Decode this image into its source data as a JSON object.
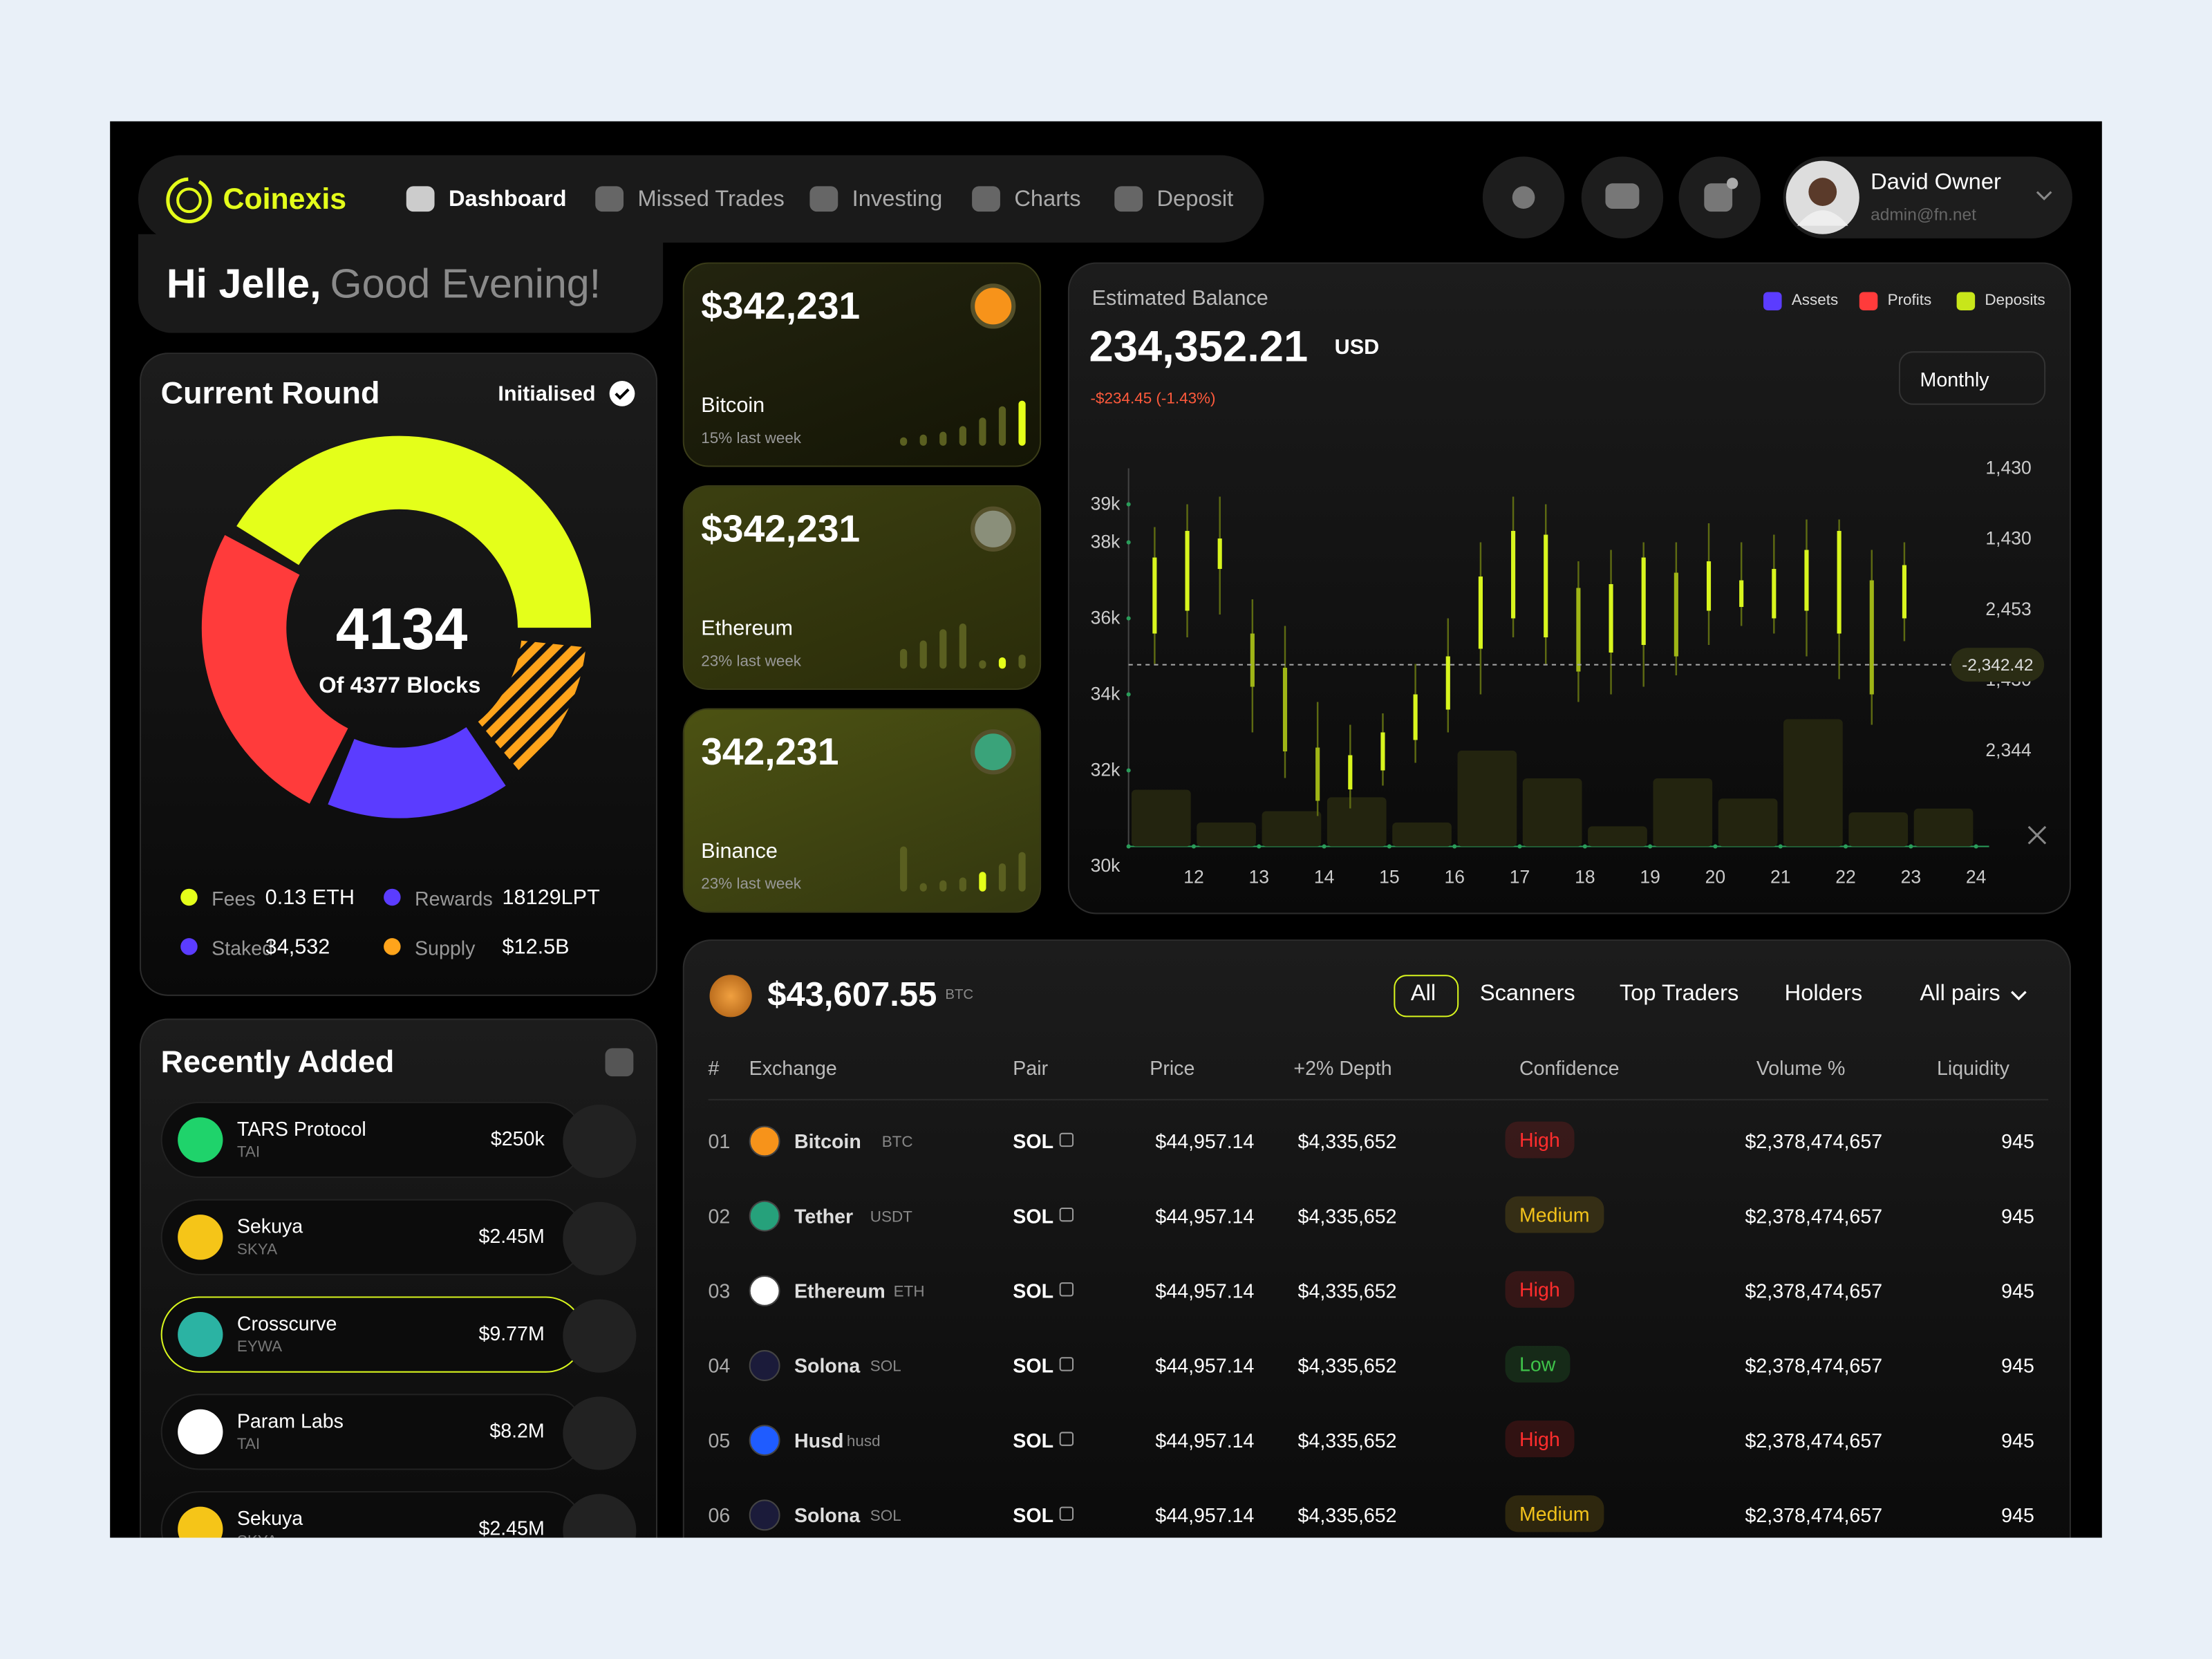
{
  "nav": {
    "brand": "Coinexis",
    "items": [
      "Dashboard",
      "Missed Trades",
      "Investing",
      "Charts",
      "Deposit"
    ]
  },
  "user": {
    "name": "David Owner",
    "email": "admin@fn.net"
  },
  "greeting": {
    "name": "Hi Jelle,",
    "message": "Good Evening!"
  },
  "current_round": {
    "title": "Current Round",
    "status": "Initialised",
    "value": "4134",
    "caption": "Of 4377 Blocks",
    "stats": [
      {
        "label": "Fees",
        "value": "0.13 ETH",
        "color": "#e4ff1a"
      },
      {
        "label": "Rewards",
        "value": "18129LPT",
        "color": "#5b3cff"
      },
      {
        "label": "Staked",
        "value": "34,532",
        "color": "#5b3cff"
      },
      {
        "label": "Supply",
        "value": "$12.5B",
        "color": "#ffa41b"
      }
    ]
  },
  "coins": [
    {
      "amount": "$342,231",
      "name": "Bitcoin",
      "change": "15% last week",
      "icon_color": "#f7931a"
    },
    {
      "amount": "$342,231",
      "name": "Ethereum",
      "change": "23% last week",
      "icon_color": "#8a8f7a"
    },
    {
      "amount": "342,231",
      "name": "Binance",
      "change": "23% last week",
      "icon_color": "#3aa37a"
    }
  ],
  "balance": {
    "title": "Estimated Balance",
    "amount": "234,352.21",
    "currency": "USD",
    "change": "-$234.45 (-1.43%)",
    "legend": [
      {
        "name": "Assets",
        "color": "#5b3cff"
      },
      {
        "name": "Profits",
        "color": "#ff3b3b"
      },
      {
        "name": "Deposits",
        "color": "#c8e61a"
      }
    ],
    "period": "Monthly"
  },
  "chart_data": {
    "type": "candlestick",
    "xlim": [
      11,
      24.2
    ],
    "xticks": [
      12,
      13,
      14,
      15,
      16,
      17,
      18,
      19,
      20,
      21,
      22,
      23,
      24
    ],
    "ylim": [
      30000,
      39500
    ],
    "yticks": [
      {
        "value": 39000,
        "label": "39k"
      },
      {
        "value": 38000,
        "label": "38k"
      },
      {
        "value": 36000,
        "label": "36k"
      },
      {
        "value": 34000,
        "label": "34k"
      },
      {
        "value": 32000,
        "label": "32k"
      },
      {
        "value": 30000,
        "label": "30k"
      }
    ],
    "candles": {
      "x": [
        11.4,
        11.9,
        12.4,
        12.9,
        13.4,
        13.9,
        14.4,
        14.9,
        15.4,
        15.9,
        16.4,
        16.9,
        17.4,
        17.9,
        18.4,
        18.9,
        19.4,
        19.9,
        20.4,
        20.9,
        21.4,
        21.9,
        22.4,
        22.9
      ],
      "low": [
        34800,
        35500,
        36100,
        33000,
        31800,
        30800,
        31000,
        31600,
        32200,
        33000,
        34000,
        35500,
        34800,
        33800,
        34000,
        34200,
        34500,
        35300,
        35800,
        35600,
        35000,
        34400,
        33200,
        35400
      ],
      "high": [
        38400,
        39000,
        39200,
        36500,
        35800,
        33800,
        33200,
        33500,
        34800,
        36000,
        38000,
        39200,
        39000,
        37500,
        37800,
        38000,
        38000,
        38500,
        38000,
        38200,
        38600,
        38600,
        37800,
        38000
      ],
      "open": [
        35600,
        36200,
        37300,
        35600,
        34700,
        32600,
        31500,
        32000,
        32800,
        33600,
        35200,
        36000,
        35500,
        36800,
        35100,
        35300,
        37200,
        36200,
        36300,
        36000,
        36200,
        35600,
        37000,
        36000
      ],
      "close": [
        37600,
        38300,
        38100,
        34200,
        32500,
        31200,
        32400,
        33000,
        34000,
        35000,
        37100,
        38300,
        38200,
        34600,
        36900,
        37600,
        35000,
        37500,
        37000,
        37300,
        37800,
        38300,
        34000,
        37400
      ],
      "color": "#d8f51e"
    },
    "volume": {
      "x": [
        11.5,
        12.5,
        13.5,
        14.5,
        15.5,
        16.5,
        17.5,
        18.5,
        19.5,
        20.5,
        21.5,
        22.5,
        23.5
      ],
      "values": [
        45,
        19,
        28,
        39,
        19,
        76,
        54,
        16,
        54,
        38,
        101,
        27,
        30
      ],
      "y2lim": [
        0,
        300
      ],
      "color": "#23240f"
    },
    "y2_labels": [
      "1,430",
      "1,430",
      "2,453",
      "1,430",
      "2,344"
    ],
    "marker": {
      "value": 34780,
      "label": "-2,342.42"
    }
  },
  "recent": {
    "title": "Recently Added",
    "items": [
      {
        "name": "TARS Protocol",
        "symbol": "TAI",
        "value": "$250k",
        "icon_color": "#1fd36b",
        "selected": false
      },
      {
        "name": "Sekuya",
        "symbol": "SKYA",
        "value": "$2.45M",
        "icon_color": "#f5c518",
        "selected": false
      },
      {
        "name": "Crosscurve",
        "symbol": "EYWA",
        "value": "$9.77M",
        "icon_color": "#2bb3a3",
        "selected": true
      },
      {
        "name": "Param Labs",
        "symbol": "TAI",
        "value": "$8.2M",
        "icon_color": "#ffffff",
        "selected": false
      },
      {
        "name": "Sekuya",
        "symbol": "SKYA",
        "value": "$2.45M",
        "icon_color": "#f5c518",
        "selected": false
      }
    ]
  },
  "market": {
    "price": "$43,607.55",
    "unit": "BTC",
    "tabs": [
      "All",
      "Scanners",
      "Top Traders",
      "Holders"
    ],
    "filter": "All pairs",
    "columns": [
      "#",
      "Exchange",
      "Pair",
      "Price",
      "+2% Depth",
      "Confidence",
      "Volume %",
      "Liquidity"
    ],
    "rows": [
      {
        "no": "01",
        "exchange": "Bitcoin",
        "symbol": "BTC",
        "pair": "SOL",
        "price": "$44,957.14",
        "depth": "$4,335,652",
        "confidence": "High",
        "volume": "$2,378,474,657",
        "liquidity": "945",
        "confidence_color": "#ff2d2d",
        "icon_color": "#f7931a"
      },
      {
        "no": "02",
        "exchange": "Tether",
        "symbol": "USDT",
        "pair": "SOL",
        "price": "$44,957.14",
        "depth": "$4,335,652",
        "confidence": "Medium",
        "volume": "$2,378,474,657",
        "liquidity": "945",
        "confidence_color": "#f2c21b",
        "icon_color": "#26a17b"
      },
      {
        "no": "03",
        "exchange": "Ethereum",
        "symbol": "ETH",
        "pair": "SOL",
        "price": "$44,957.14",
        "depth": "$4,335,652",
        "confidence": "High",
        "volume": "$2,378,474,657",
        "liquidity": "945",
        "confidence_color": "#ff2d2d",
        "icon_color": "#ffffff"
      },
      {
        "no": "04",
        "exchange": "Solona",
        "symbol": "SOL",
        "pair": "SOL",
        "price": "$44,957.14",
        "depth": "$4,335,652",
        "confidence": "Low",
        "volume": "$2,378,474,657",
        "liquidity": "945",
        "confidence_color": "#3fc34a",
        "icon_color": "#1b1b3a"
      },
      {
        "no": "05",
        "exchange": "Husd",
        "symbol": "husd",
        "pair": "SOL",
        "price": "$44,957.14",
        "depth": "$4,335,652",
        "confidence": "High",
        "volume": "$2,378,474,657",
        "liquidity": "945",
        "confidence_color": "#ff2d2d",
        "icon_color": "#1f5cff"
      },
      {
        "no": "06",
        "exchange": "Solona",
        "symbol": "SOL",
        "pair": "SOL",
        "price": "$44,957.14",
        "depth": "$4,335,652",
        "confidence": "Medium",
        "volume": "$2,378,474,657",
        "liquidity": "945",
        "confidence_color": "#f2c21b",
        "icon_color": "#1b1b3a"
      }
    ]
  }
}
